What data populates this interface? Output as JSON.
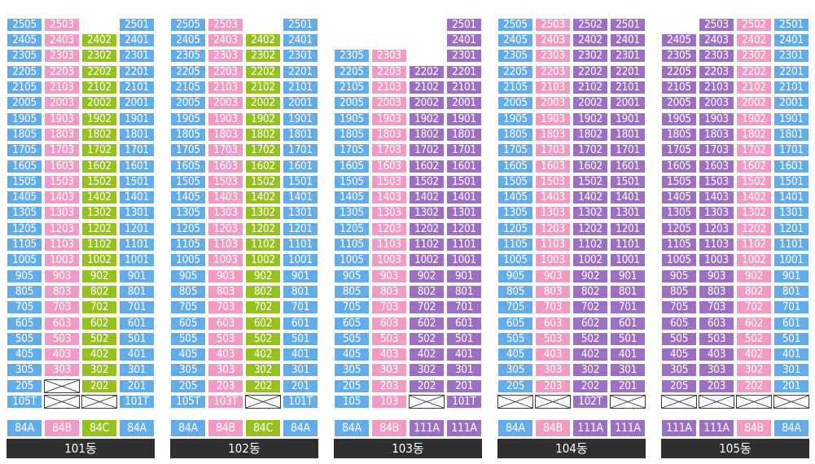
{
  "colors": {
    "84A": "#63acea",
    "84B": "#f19bc4",
    "84C": "#95c11f",
    "111A": "#9d6fc2"
  },
  "buildings": [
    {
      "name": "101동",
      "lines": [
        {
          "type": "84A",
          "units": [
            "105T",
            "205",
            "305",
            "405",
            "505",
            "605",
            "705",
            "805",
            "905",
            "1005",
            "1105",
            "1205",
            "1305",
            "1405",
            "1505",
            "1605",
            "1705",
            "1805",
            "1905",
            "2005",
            "2105",
            "2205",
            "2305",
            "2405",
            "2505"
          ]
        },
        {
          "type": "84B",
          "units": [
            "X",
            "X",
            "303",
            "403",
            "503",
            "603",
            "703",
            "803",
            "903",
            "1003",
            "1103",
            "1203",
            "1303",
            "1403",
            "1503",
            "1603",
            "1703",
            "1803",
            "1903",
            "2003",
            "2103",
            "2203",
            "2303",
            "2403",
            "2503"
          ]
        },
        {
          "type": "84C",
          "units": [
            "X",
            "202",
            "302",
            "402",
            "502",
            "602",
            "702",
            "802",
            "902",
            "1002",
            "1102",
            "1202",
            "1302",
            "1402",
            "1502",
            "1602",
            "1702",
            "1802",
            "1902",
            "2002",
            "2102",
            "2202",
            "2302",
            "2402"
          ]
        },
        {
          "type": "84A",
          "units": [
            "101T",
            "201",
            "301",
            "401",
            "501",
            "601",
            "701",
            "801",
            "901",
            "1001",
            "1101",
            "1201",
            "1301",
            "1401",
            "1501",
            "1601",
            "1701",
            "1801",
            "1901",
            "2001",
            "2101",
            "2201",
            "2301",
            "2401",
            "2501"
          ]
        }
      ]
    },
    {
      "name": "102동",
      "lines": [
        {
          "type": "84A",
          "units": [
            "105T",
            "205",
            "305",
            "405",
            "505",
            "605",
            "705",
            "805",
            "905",
            "1005",
            "1105",
            "1205",
            "1305",
            "1405",
            "1505",
            "1605",
            "1705",
            "1805",
            "1905",
            "2005",
            "2105",
            "2205",
            "2305",
            "2405",
            "2505"
          ]
        },
        {
          "type": "84B",
          "units": [
            "103T",
            "203",
            "303",
            "403",
            "503",
            "603",
            "703",
            "803",
            "903",
            "1003",
            "1103",
            "1203",
            "1303",
            "1403",
            "1503",
            "1603",
            "1703",
            "1803",
            "1903",
            "2003",
            "2103",
            "2203",
            "2303",
            "2403",
            "2503"
          ]
        },
        {
          "type": "84C",
          "units": [
            "X",
            "202",
            "302",
            "402",
            "502",
            "602",
            "702",
            "802",
            "902",
            "1002",
            "1102",
            "1202",
            "1302",
            "1402",
            "1502",
            "1602",
            "1702",
            "1802",
            "1902",
            "2002",
            "2102",
            "2202",
            "2302",
            "2402"
          ]
        },
        {
          "type": "84A",
          "units": [
            "101T",
            "201",
            "301",
            "401",
            "501",
            "601",
            "701",
            "801",
            "901",
            "1001",
            "1101",
            "1201",
            "1301",
            "1401",
            "1501",
            "1601",
            "1701",
            "1801",
            "1901",
            "2001",
            "2101",
            "2201",
            "2301",
            "2401",
            "2501"
          ]
        }
      ]
    },
    {
      "name": "103동",
      "lines": [
        {
          "type": "84A",
          "units": [
            "105",
            "205",
            "305",
            "405",
            "505",
            "605",
            "705",
            "805",
            "905",
            "1005",
            "1105",
            "1205",
            "1305",
            "1405",
            "1505",
            "1605",
            "1705",
            "1805",
            "1905",
            "2005",
            "2105",
            "2205",
            "2305"
          ]
        },
        {
          "type": "84B",
          "units": [
            "103",
            "203",
            "303",
            "403",
            "503",
            "603",
            "703",
            "803",
            "903",
            "1003",
            "1103",
            "1203",
            "1303",
            "1403",
            "1503",
            "1603",
            "1703",
            "1803",
            "1903",
            "2003",
            "2103",
            "2203",
            "2303"
          ]
        },
        {
          "type": "111A",
          "units": [
            "X",
            "202",
            "302",
            "402",
            "502",
            "602",
            "702",
            "802",
            "902",
            "1002",
            "1102",
            "1202",
            "1302",
            "1402",
            "1502",
            "1602",
            "1702",
            "1802",
            "1902",
            "2002",
            "2102",
            "2202"
          ]
        },
        {
          "type": "111A",
          "units": [
            "101T",
            "201",
            "301",
            "401",
            "501",
            "601",
            "701",
            "801",
            "901",
            "1001",
            "1101",
            "1201",
            "1301",
            "1401",
            "1501",
            "1601",
            "1701",
            "1801",
            "1901",
            "2001",
            "2101",
            "2201",
            "2301",
            "2401",
            "2501"
          ]
        }
      ]
    },
    {
      "name": "104동",
      "lines": [
        {
          "type": "84A",
          "units": [
            "X",
            "205",
            "305",
            "405",
            "505",
            "605",
            "705",
            "805",
            "905",
            "1005",
            "1105",
            "1205",
            "1305",
            "1405",
            "1505",
            "1605",
            "1705",
            "1805",
            "1905",
            "2005",
            "2105",
            "2205",
            "2305",
            "2405",
            "2505"
          ]
        },
        {
          "type": "84B",
          "units": [
            "X",
            "203",
            "303",
            "403",
            "503",
            "603",
            "703",
            "803",
            "903",
            "1003",
            "1103",
            "1203",
            "1303",
            "1403",
            "1503",
            "1603",
            "1703",
            "1803",
            "1903",
            "2003",
            "2103",
            "2203",
            "2303",
            "2403",
            "2503"
          ]
        },
        {
          "type": "111A",
          "units": [
            "102T",
            "202",
            "302",
            "402",
            "502",
            "602",
            "702",
            "802",
            "902",
            "1002",
            "1102",
            "1202",
            "1302",
            "1402",
            "1502",
            "1602",
            "1702",
            "1802",
            "1902",
            "2002",
            "2102",
            "2202",
            "2302",
            "2402",
            "2502"
          ]
        },
        {
          "type": "111A",
          "units": [
            "X",
            "201",
            "301",
            "401",
            "501",
            "601",
            "701",
            "801",
            "901",
            "1001",
            "1101",
            "1201",
            "1301",
            "1401",
            "1501",
            "1601",
            "1701",
            "1801",
            "1901",
            "2001",
            "2101",
            "2201",
            "2301",
            "2401",
            "2501"
          ]
        }
      ]
    },
    {
      "name": "105동",
      "lines": [
        {
          "type": "111A",
          "units": [
            "X",
            "205",
            "305",
            "405",
            "505",
            "605",
            "705",
            "805",
            "905",
            "1005",
            "1105",
            "1205",
            "1305",
            "1405",
            "1505",
            "1605",
            "1705",
            "1805",
            "1905",
            "2005",
            "2105",
            "2205",
            "2305",
            "2405"
          ]
        },
        {
          "type": "111A",
          "units": [
            "X",
            "203",
            "303",
            "403",
            "503",
            "603",
            "703",
            "803",
            "903",
            "1003",
            "1103",
            "1203",
            "1303",
            "1403",
            "1503",
            "1603",
            "1703",
            "1803",
            "1903",
            "2003",
            "2103",
            "2203",
            "2303",
            "2403",
            "2503"
          ]
        },
        {
          "type": "84B",
          "units": [
            "X",
            "202",
            "302",
            "402",
            "502",
            "602",
            "702",
            "802",
            "902",
            "1002",
            "1102",
            "1202",
            "1302",
            "1402",
            "1502",
            "1602",
            "1702",
            "1802",
            "1902",
            "2002",
            "2102",
            "2202",
            "2302",
            "2402",
            "2502"
          ]
        },
        {
          "type": "84A",
          "units": [
            "X",
            "201",
            "301",
            "401",
            "501",
            "601",
            "701",
            "801",
            "901",
            "1001",
            "1101",
            "1201",
            "1301",
            "1401",
            "1501",
            "1601",
            "1701",
            "1801",
            "1901",
            "2001",
            "2101",
            "2201",
            "2301",
            "2401",
            "2501"
          ]
        }
      ]
    }
  ]
}
